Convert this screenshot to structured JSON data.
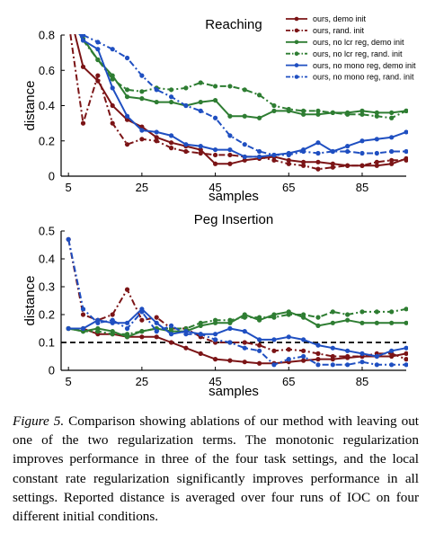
{
  "chart_data": [
    {
      "type": "line",
      "title": "Reaching",
      "xlabel": "samples",
      "ylabel": "distance",
      "xlim": [
        3,
        97
      ],
      "ylim": [
        0,
        0.8
      ],
      "xticks": [
        5,
        25,
        45,
        65,
        85
      ],
      "yticks": [
        0,
        0.2,
        0.4,
        0.6,
        0.8
      ],
      "ytick_labels": [
        "0",
        "0.2",
        "0.4",
        "0.6",
        "0.8"
      ],
      "legend_position": "top-right",
      "x": [
        5,
        9,
        13,
        17,
        21,
        25,
        29,
        33,
        37,
        41,
        45,
        49,
        53,
        57,
        61,
        65,
        69,
        73,
        77,
        81,
        85,
        89,
        93,
        97
      ],
      "series": [
        {
          "name": "ours, demo init",
          "color": "#7b1416",
          "dash": "solid",
          "values": [
            0.95,
            0.62,
            0.54,
            0.4,
            0.32,
            0.28,
            0.22,
            0.19,
            0.17,
            0.15,
            0.07,
            0.07,
            0.09,
            0.1,
            0.11,
            0.09,
            0.08,
            0.08,
            0.07,
            0.06,
            0.06,
            0.06,
            0.07,
            0.1
          ]
        },
        {
          "name": "ours, rand. init",
          "color": "#7b1416",
          "dash": "dashdot",
          "values": [
            0.88,
            0.3,
            0.57,
            0.3,
            0.18,
            0.21,
            0.2,
            0.16,
            0.14,
            0.13,
            0.12,
            0.12,
            0.11,
            0.11,
            0.09,
            0.07,
            0.06,
            0.04,
            0.05,
            0.06,
            0.06,
            0.08,
            0.09,
            0.09
          ]
        },
        {
          "name": "ours, no lcr reg, demo init",
          "color": "#2e7d32",
          "dash": "solid",
          "values": [
            0.9,
            0.78,
            0.66,
            0.57,
            0.45,
            0.44,
            0.42,
            0.42,
            0.4,
            0.42,
            0.43,
            0.34,
            0.34,
            0.33,
            0.37,
            0.37,
            0.35,
            0.35,
            0.36,
            0.36,
            0.37,
            0.36,
            0.36,
            0.37
          ]
        },
        {
          "name": "ours, no lcr reg, rand. init",
          "color": "#2e7d32",
          "dash": "dashdot",
          "values": [
            0.9,
            0.77,
            0.66,
            0.55,
            0.49,
            0.48,
            0.5,
            0.49,
            0.5,
            0.53,
            0.51,
            0.51,
            0.49,
            0.46,
            0.4,
            0.38,
            0.37,
            0.37,
            0.36,
            0.35,
            0.35,
            0.34,
            0.33,
            0.37
          ]
        },
        {
          "name": "ours, no mono reg, demo init",
          "color": "#1f4fc1",
          "dash": "solid",
          "values": [
            0.92,
            0.77,
            0.72,
            0.5,
            0.34,
            0.26,
            0.25,
            0.23,
            0.18,
            0.17,
            0.15,
            0.15,
            0.11,
            0.11,
            0.12,
            0.13,
            0.15,
            0.19,
            0.14,
            0.17,
            0.2,
            0.21,
            0.22,
            0.25
          ]
        },
        {
          "name": "ours, no mono reg, rand. init",
          "color": "#1f4fc1",
          "dash": "dashdot",
          "values": [
            0.93,
            0.8,
            0.76,
            0.72,
            0.67,
            0.57,
            0.49,
            0.45,
            0.4,
            0.37,
            0.33,
            0.23,
            0.18,
            0.14,
            0.12,
            0.12,
            0.14,
            0.13,
            0.14,
            0.14,
            0.13,
            0.13,
            0.14,
            0.14
          ]
        }
      ]
    },
    {
      "type": "line",
      "title": "Peg Insertion",
      "xlabel": "samples",
      "ylabel": "distance",
      "xlim": [
        3,
        97
      ],
      "ylim": [
        0,
        0.5
      ],
      "xticks": [
        5,
        25,
        45,
        65,
        85
      ],
      "yticks": [
        0,
        0.1,
        0.2,
        0.3,
        0.4,
        0.5
      ],
      "ytick_labels": [
        "0",
        "0.1",
        "0.2",
        "0.3",
        "0.4",
        "0.5"
      ],
      "reference_line": {
        "y": 0.1,
        "color": "#000000",
        "dash": "dashed"
      },
      "x": [
        5,
        9,
        13,
        17,
        21,
        25,
        29,
        33,
        37,
        41,
        45,
        49,
        53,
        57,
        61,
        65,
        69,
        73,
        77,
        81,
        85,
        89,
        93,
        97
      ],
      "series": [
        {
          "name": "ours, demo init",
          "color": "#7b1416",
          "dash": "solid",
          "values": [
            0.15,
            0.15,
            0.13,
            0.13,
            0.12,
            0.12,
            0.12,
            0.1,
            0.08,
            0.06,
            0.04,
            0.035,
            0.03,
            0.025,
            0.025,
            0.03,
            0.035,
            0.04,
            0.04,
            0.045,
            0.05,
            0.05,
            0.05,
            0.06
          ]
        },
        {
          "name": "ours, rand. init",
          "color": "#7b1416",
          "dash": "dashdot",
          "values": [
            0.47,
            0.2,
            0.18,
            0.2,
            0.29,
            0.18,
            0.19,
            0.15,
            0.15,
            0.12,
            0.1,
            0.1,
            0.1,
            0.09,
            0.07,
            0.075,
            0.07,
            0.06,
            0.05,
            0.05,
            0.05,
            0.06,
            0.06,
            0.04
          ]
        },
        {
          "name": "ours, no lcr reg, demo init",
          "color": "#2e7d32",
          "dash": "solid",
          "values": [
            0.15,
            0.14,
            0.15,
            0.14,
            0.12,
            0.14,
            0.15,
            0.14,
            0.14,
            0.16,
            0.17,
            0.17,
            0.2,
            0.18,
            0.2,
            0.21,
            0.19,
            0.16,
            0.17,
            0.18,
            0.17,
            0.17,
            0.17,
            0.17
          ]
        },
        {
          "name": "ours, no lcr reg, rand. init",
          "color": "#2e7d32",
          "dash": "dashdot",
          "values": [
            0.15,
            0.14,
            0.14,
            0.13,
            0.13,
            0.14,
            0.15,
            0.15,
            0.15,
            0.17,
            0.18,
            0.18,
            0.19,
            0.19,
            0.19,
            0.2,
            0.2,
            0.19,
            0.21,
            0.2,
            0.21,
            0.21,
            0.21,
            0.22
          ]
        },
        {
          "name": "ours, no mono reg, demo init",
          "color": "#1f4fc1",
          "dash": "solid",
          "values": [
            0.15,
            0.15,
            0.18,
            0.17,
            0.17,
            0.22,
            0.17,
            0.13,
            0.14,
            0.13,
            0.13,
            0.15,
            0.14,
            0.11,
            0.11,
            0.12,
            0.11,
            0.09,
            0.08,
            0.07,
            0.06,
            0.05,
            0.07,
            0.08
          ]
        },
        {
          "name": "ours, no mono reg, rand. init",
          "color": "#1f4fc1",
          "dash": "dashdot",
          "values": [
            0.47,
            0.22,
            0.17,
            0.18,
            0.15,
            0.21,
            0.14,
            0.16,
            0.13,
            0.13,
            0.11,
            0.1,
            0.08,
            0.07,
            0.02,
            0.04,
            0.05,
            0.02,
            0.02,
            0.02,
            0.03,
            0.02,
            0.02,
            0.02
          ]
        }
      ]
    }
  ],
  "caption": {
    "label": "Figure 5.",
    "text": "Comparison showing ablations of our method with leaving out one of the two regularization terms. The monotonic regularization improves performance in three of the four task settings, and the local constant rate regularization significantly improves performance in all settings. Reported distance is averaged over four runs of IOC on four different initial conditions."
  }
}
